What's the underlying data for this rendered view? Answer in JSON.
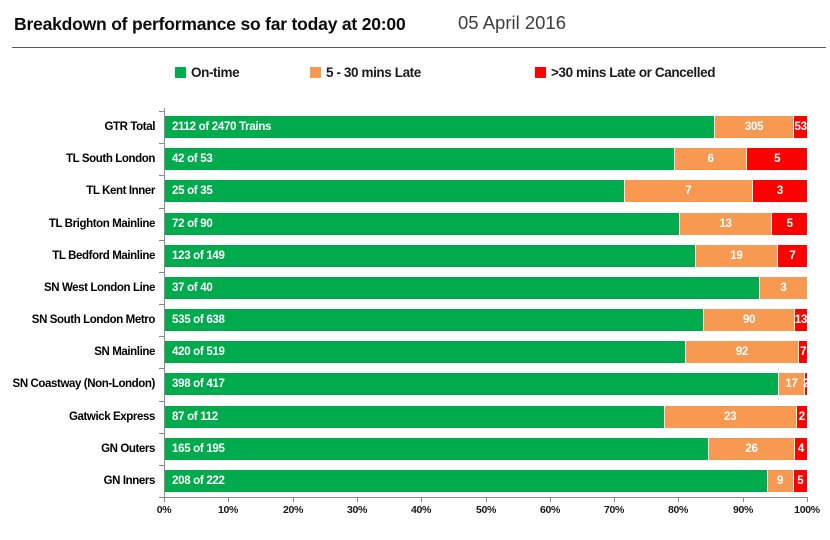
{
  "header": {
    "title": "Breakdown of performance so far today at 20:00",
    "date": "05 April 2016"
  },
  "colors": {
    "on_time": "#00AB4E",
    "late": "#F79951",
    "very_late": "#FF0000",
    "axis": "#8a8a8a"
  },
  "chart_data": {
    "type": "bar",
    "variant": "100%-stacked-horizontal",
    "title": "Breakdown of performance so far today at 20:00",
    "subtitle": "05 April 2016",
    "legend_position": "top",
    "grid": false,
    "series": [
      {
        "name": "On-time",
        "color": "#00AB4E"
      },
      {
        "name": "5 - 30 mins Late",
        "color": "#F79951"
      },
      {
        "name": ">30 mins Late or Cancelled",
        "color": "#FF0000"
      }
    ],
    "categories": [
      "GTR Total",
      "TL South London",
      "TL Kent Inner",
      "TL Brighton Mainline",
      "TL Bedford Mainline",
      "SN West London Line",
      "SN South London Metro",
      "SN Mainline",
      "SN Coastway (Non-London)",
      "Gatwick Express",
      "GN Outers",
      "GN Inners"
    ],
    "rows": [
      {
        "category": "GTR Total",
        "on_time": 2112,
        "late": 305,
        "very_late": 53,
        "total": 2470,
        "on_time_label": "2112 of 2470 Trains"
      },
      {
        "category": "TL South London",
        "on_time": 42,
        "late": 6,
        "very_late": 5,
        "total": 53,
        "on_time_label": "42 of 53"
      },
      {
        "category": "TL Kent Inner",
        "on_time": 25,
        "late": 7,
        "very_late": 3,
        "total": 35,
        "on_time_label": "25 of 35"
      },
      {
        "category": "TL Brighton Mainline",
        "on_time": 72,
        "late": 13,
        "very_late": 5,
        "total": 90,
        "on_time_label": "72 of 90"
      },
      {
        "category": "TL Bedford Mainline",
        "on_time": 123,
        "late": 19,
        "very_late": 7,
        "total": 149,
        "on_time_label": "123 of 149"
      },
      {
        "category": "SN West London Line",
        "on_time": 37,
        "late": 3,
        "very_late": 0,
        "total": 40,
        "on_time_label": "37 of 40"
      },
      {
        "category": "SN South London Metro",
        "on_time": 535,
        "late": 90,
        "very_late": 13,
        "total": 638,
        "on_time_label": "535 of 638"
      },
      {
        "category": "SN Mainline",
        "on_time": 420,
        "late": 92,
        "very_late": 7,
        "total": 519,
        "on_time_label": "420 of 519"
      },
      {
        "category": "SN Coastway (Non-London)",
        "on_time": 398,
        "late": 17,
        "very_late": 2,
        "total": 417,
        "on_time_label": "398 of 417"
      },
      {
        "category": "Gatwick Express",
        "on_time": 87,
        "late": 23,
        "very_late": 2,
        "total": 112,
        "on_time_label": "87 of 112"
      },
      {
        "category": "GN Outers",
        "on_time": 165,
        "late": 26,
        "very_late": 4,
        "total": 195,
        "on_time_label": "165 of 195"
      },
      {
        "category": "GN Inners",
        "on_time": 208,
        "late": 9,
        "very_late": 5,
        "total": 222,
        "on_time_label": "208 of 222"
      }
    ],
    "x_axis": {
      "min": 0,
      "max": 100,
      "tick_labels": [
        "0%",
        "10%",
        "20%",
        "30%",
        "40%",
        "50%",
        "60%",
        "70%",
        "80%",
        "90%",
        "100%"
      ]
    }
  }
}
